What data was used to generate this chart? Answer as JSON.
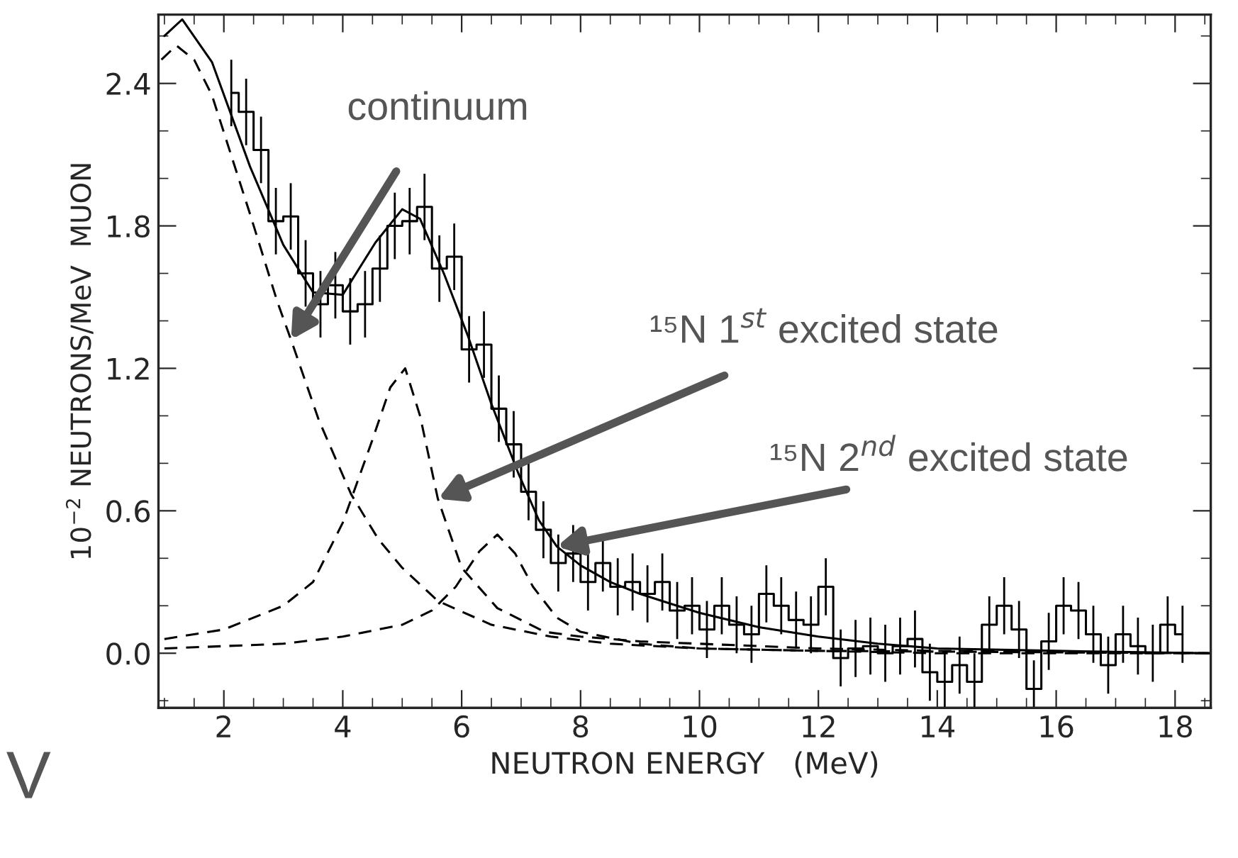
{
  "chart_data": {
    "type": "line",
    "xlabel": "NEUTRON ENERGY   (MeV)",
    "ylabel": "10$^{−2}$ NEUTRONS/MeV  MUON",
    "series": [
      {
        "type": "step",
        "color": "#000000",
        "line_style": "solid",
        "x": [
          2.125,
          2.375,
          2.625,
          2.875,
          3.125,
          3.375,
          3.625,
          3.875,
          4.125,
          4.375,
          4.625,
          4.875,
          5.125,
          5.375,
          5.625,
          5.875,
          6.125,
          6.375,
          6.625,
          6.875,
          7.125,
          7.375,
          7.625,
          7.875,
          8.125,
          8.375,
          8.625,
          8.875,
          9.125,
          9.375,
          9.625,
          9.875,
          10.125,
          10.375,
          10.625,
          10.875,
          11.125,
          11.375,
          11.625,
          11.875,
          12.125,
          12.375,
          12.625,
          12.875,
          13.125,
          13.375,
          13.625,
          13.875,
          14.125,
          14.375,
          14.625,
          14.875,
          15.125,
          15.375,
          15.625,
          15.875,
          16.125,
          16.375,
          16.625,
          16.875,
          17.125,
          17.375,
          17.625,
          17.875,
          18.125
        ],
        "values": [
          2.36,
          2.28,
          2.12,
          1.82,
          1.84,
          1.6,
          1.47,
          1.55,
          1.44,
          1.47,
          1.62,
          1.8,
          1.82,
          1.88,
          1.62,
          1.67,
          1.28,
          1.3,
          1.03,
          0.88,
          0.68,
          0.52,
          0.38,
          0.42,
          0.3,
          0.38,
          0.28,
          0.3,
          0.25,
          0.3,
          0.18,
          0.2,
          0.1,
          0.2,
          0.12,
          0.08,
          0.25,
          0.2,
          0.14,
          0.12,
          0.28,
          -0.02,
          0.02,
          0.03,
          0.0,
          0.03,
          0.06,
          -0.08,
          -0.12,
          -0.05,
          -0.12,
          0.12,
          0.2,
          0.1,
          -0.15,
          0.05,
          0.2,
          0.18,
          0.08,
          -0.05,
          0.08,
          0.03,
          0.0,
          0.12,
          0.08
        ],
        "errors": [
          0.14,
          0.14,
          0.14,
          0.14,
          0.14,
          0.14,
          0.14,
          0.14,
          0.14,
          0.14,
          0.14,
          0.14,
          0.14,
          0.14,
          0.14,
          0.14,
          0.14,
          0.14,
          0.14,
          0.14,
          0.12,
          0.12,
          0.12,
          0.12,
          0.12,
          0.12,
          0.12,
          0.12,
          0.12,
          0.12,
          0.12,
          0.12,
          0.12,
          0.12,
          0.12,
          0.12,
          0.12,
          0.12,
          0.12,
          0.12,
          0.12,
          0.12,
          0.12,
          0.12,
          0.12,
          0.12,
          0.12,
          0.12,
          0.12,
          0.12,
          0.12,
          0.12,
          0.12,
          0.12,
          0.12,
          0.12,
          0.12,
          0.12,
          0.12,
          0.12,
          0.12,
          0.12,
          0.12,
          0.12,
          0.12
        ]
      },
      {
        "color": "#000000",
        "line_style": "solid",
        "x": [
          1.0,
          1.3,
          1.8,
          2.44,
          3.0,
          3.5,
          4.0,
          4.55,
          5.0,
          5.3,
          5.7,
          6.1,
          6.5,
          6.95,
          7.3,
          7.6,
          8.0,
          8.5,
          9.0,
          9.5,
          10.0,
          11.0,
          12.0,
          13.0,
          14.0,
          16.0,
          18.6
        ],
        "values": [
          2.6,
          2.67,
          2.49,
          2.05,
          1.72,
          1.52,
          1.51,
          1.73,
          1.87,
          1.83,
          1.6,
          1.34,
          1.05,
          0.76,
          0.56,
          0.45,
          0.37,
          0.3,
          0.25,
          0.21,
          0.17,
          0.11,
          0.07,
          0.04,
          0.02,
          0.01,
          0.0
        ]
      },
      {
        "color": "#000000",
        "line_style": "dashed",
        "x": [
          0.95,
          1.2,
          1.5,
          1.8,
          2.44,
          2.9,
          3.13,
          3.6,
          4.14,
          4.6,
          5.0,
          5.6,
          6.5,
          7.5,
          8.5,
          10.0,
          12.0,
          14.0,
          18.6
        ],
        "values": [
          2.5,
          2.56,
          2.5,
          2.35,
          1.85,
          1.48,
          1.32,
          0.98,
          0.67,
          0.48,
          0.36,
          0.22,
          0.12,
          0.07,
          0.04,
          0.02,
          0.01,
          0.0,
          0.0
        ]
      },
      {
        "color": "#000000",
        "line_style": "dashed",
        "x": [
          1.0,
          2.0,
          3.0,
          3.5,
          4.0,
          4.5,
          4.8,
          5.05,
          5.3,
          5.6,
          6.0,
          6.6,
          7.4,
          8.0,
          9.0,
          10.0,
          12.0,
          14.0,
          18.6
        ],
        "values": [
          0.06,
          0.1,
          0.2,
          0.3,
          0.55,
          0.9,
          1.12,
          1.2,
          1.0,
          0.65,
          0.36,
          0.19,
          0.09,
          0.07,
          0.05,
          0.04,
          0.02,
          0.01,
          0.0
        ]
      },
      {
        "color": "#000000",
        "line_style": "dashed",
        "x": [
          1.0,
          3.0,
          4.0,
          5.0,
          5.5,
          5.9,
          6.3,
          6.6,
          6.9,
          7.2,
          7.6,
          8.0,
          9.0,
          10.0,
          12.0,
          18.6
        ],
        "values": [
          0.02,
          0.04,
          0.07,
          0.12,
          0.18,
          0.28,
          0.43,
          0.5,
          0.42,
          0.28,
          0.15,
          0.09,
          0.04,
          0.02,
          0.01,
          0.0
        ]
      }
    ],
    "xlim": [
      0.9,
      18.6
    ],
    "ylim": [
      -0.23,
      2.69
    ],
    "xticks": [
      2,
      4,
      6,
      8,
      10,
      12,
      14,
      16,
      18
    ],
    "yticks": [
      {
        "value": 0.0,
        "label": "0.0"
      },
      0.6,
      1.2,
      1.8,
      2.4
    ],
    "annotations": [
      {
        "text": "continuum",
        "x": 3.13,
        "y": 1.32
      },
      {
        "text": "¹⁵N 1$^{st}$ excited state",
        "x": 5.6,
        "y": 0.65
      },
      {
        "text": "¹⁵N 2$^{nd}$ excited state",
        "x": 7.6,
        "y": 0.45
      },
      "V"
    ]
  }
}
